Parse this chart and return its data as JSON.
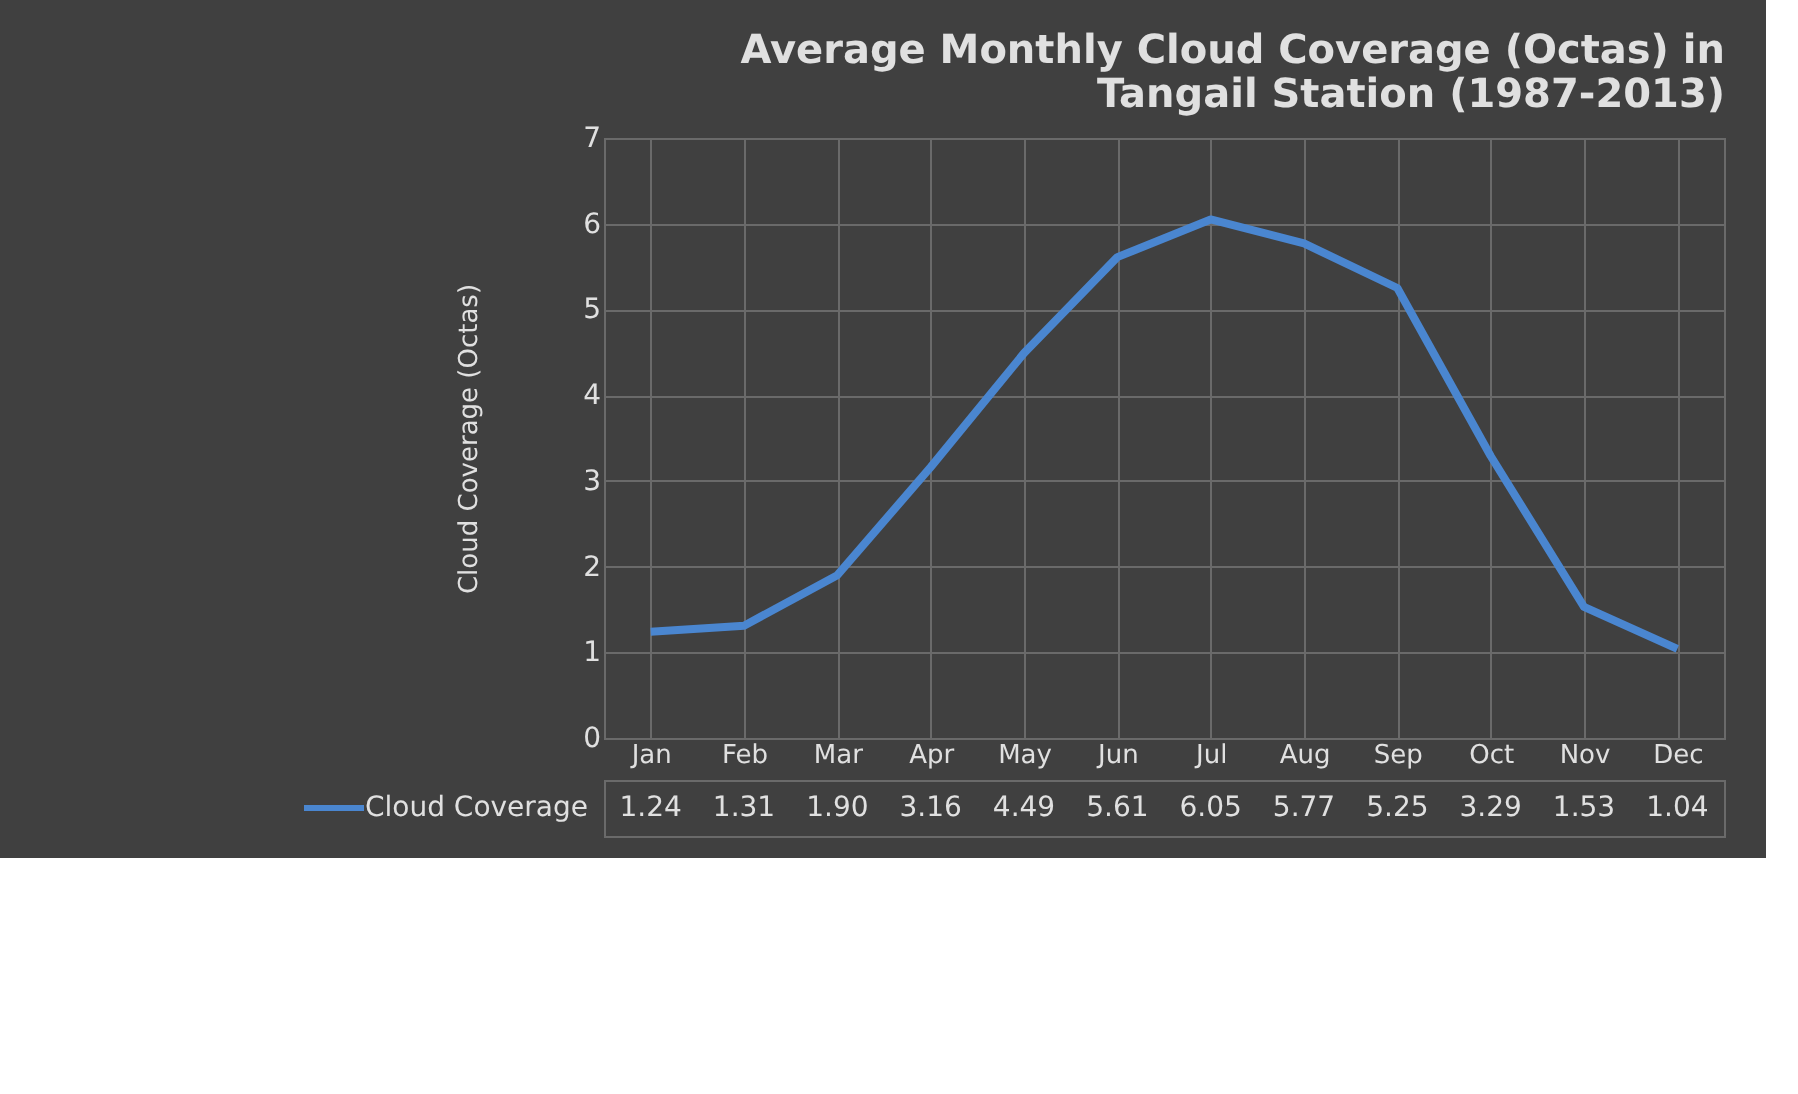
{
  "chart_data": {
    "type": "line",
    "title": "Average Monthly Cloud Coverage (Octas) in Tangail Station (1987-2013)",
    "ylabel": "Cloud Coverage (Octas)",
    "categories": [
      "Jan",
      "Feb",
      "Mar",
      "Apr",
      "May",
      "Jun",
      "Jul",
      "Aug",
      "Sep",
      "Oct",
      "Nov",
      "Dec"
    ],
    "series": [
      {
        "name": "Cloud Coverage",
        "color": "#4a86d0",
        "values": [
          1.24,
          1.31,
          1.9,
          3.16,
          4.49,
          5.61,
          6.05,
          5.77,
          5.25,
          3.29,
          1.53,
          1.04
        ],
        "value_labels": [
          "1.24",
          "1.31",
          "1.90",
          "3.16",
          "4.49",
          "5.61",
          "6.05",
          "5.77",
          "5.25",
          "3.29",
          "1.53",
          "1.04"
        ]
      }
    ],
    "ylim": [
      0,
      7
    ],
    "yticks": [
      0,
      1,
      2,
      3,
      4,
      5,
      6,
      7
    ],
    "grid": true,
    "marker": "none",
    "line_style": "solid"
  }
}
